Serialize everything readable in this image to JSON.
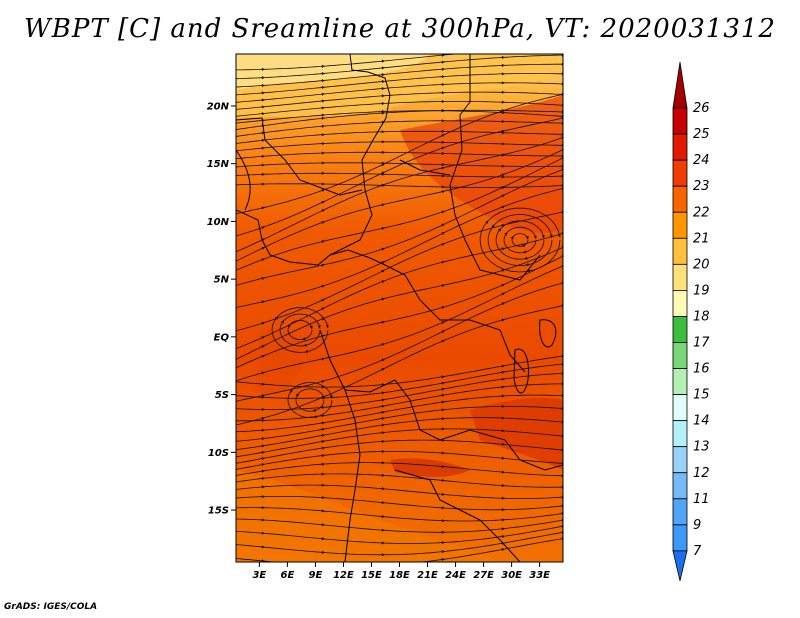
{
  "title": "WBPT [C] and Sreamline at 300hPa, VT: 2020031312",
  "credit": "GrADS: IGES/COLA",
  "map": {
    "lat_range": [
      -19.5,
      24.5
    ],
    "lon_range": [
      0.5,
      35.5
    ],
    "lat_ticks": [
      {
        "value": 20,
        "label": "20N"
      },
      {
        "value": 15,
        "label": "15N"
      },
      {
        "value": 10,
        "label": "10N"
      },
      {
        "value": 5,
        "label": "5N"
      },
      {
        "value": 0,
        "label": "EQ"
      },
      {
        "value": -5,
        "label": "5S"
      },
      {
        "value": -10,
        "label": "10S"
      },
      {
        "value": -15,
        "label": "15S"
      }
    ],
    "lon_ticks": [
      {
        "value": 3,
        "label": "3E"
      },
      {
        "value": 6,
        "label": "6E"
      },
      {
        "value": 9,
        "label": "9E"
      },
      {
        "value": 12,
        "label": "12E"
      },
      {
        "value": 15,
        "label": "15E"
      },
      {
        "value": 18,
        "label": "18E"
      },
      {
        "value": 21,
        "label": "21E"
      },
      {
        "value": 24,
        "label": "24E"
      },
      {
        "value": 27,
        "label": "27E"
      },
      {
        "value": 30,
        "label": "30E"
      },
      {
        "value": 33,
        "label": "33E"
      }
    ]
  },
  "colorbar": {
    "levels": [
      {
        "label": "26",
        "color": "#a50000"
      },
      {
        "label": "25",
        "color": "#c80000"
      },
      {
        "label": "24",
        "color": "#e11b00"
      },
      {
        "label": "23",
        "color": "#f03c00"
      },
      {
        "label": "22",
        "color": "#fa6400"
      },
      {
        "label": "21",
        "color": "#ff9600"
      },
      {
        "label": "20",
        "color": "#ffbe3c"
      },
      {
        "label": "19",
        "color": "#ffe178"
      },
      {
        "label": "18",
        "color": "#fffab4"
      },
      {
        "label": "17",
        "color": "#3cbe3c"
      },
      {
        "label": "16",
        "color": "#78d778"
      },
      {
        "label": "15",
        "color": "#b4f0b4"
      },
      {
        "label": "14",
        "color": "#e1fffa"
      },
      {
        "label": "13",
        "color": "#b4f0fa"
      },
      {
        "label": "12",
        "color": "#96d2fa"
      },
      {
        "label": "11",
        "color": "#78b9fa"
      },
      {
        "label": "9",
        "color": "#50a5f5"
      },
      {
        "label": "7",
        "color": "#3c97f5"
      },
      {
        "label": "",
        "color": "#1e6eeb"
      }
    ]
  }
}
